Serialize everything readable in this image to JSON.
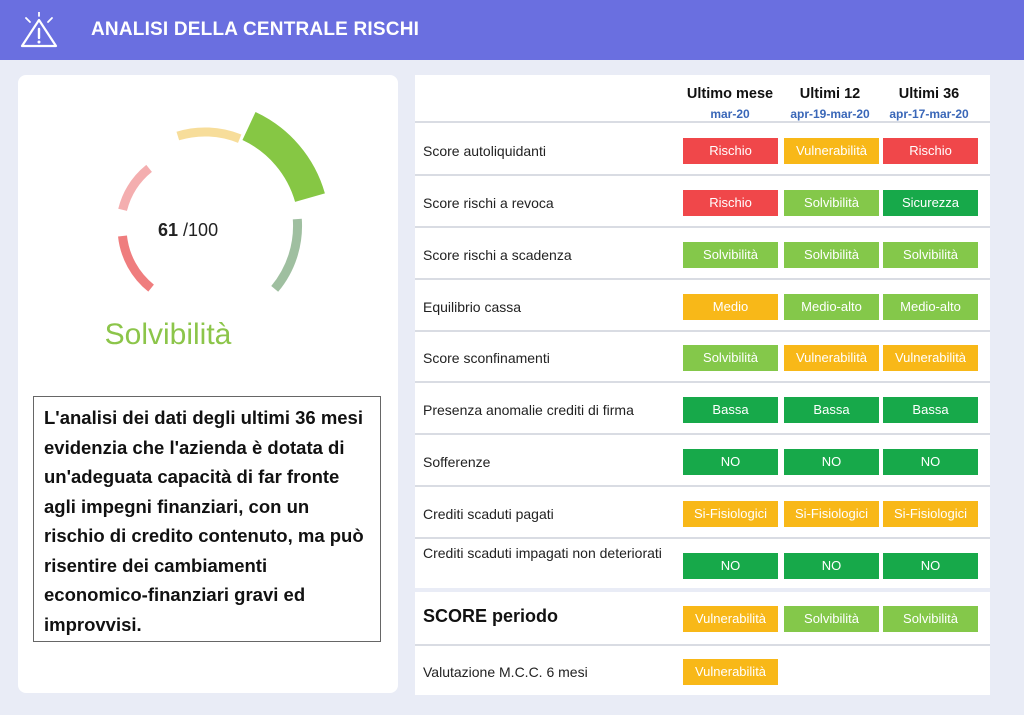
{
  "header": {
    "title": "ANALISI DELLA CENTRALE RISCHI",
    "icon": "warning-triangle-icon",
    "background": "#6a6fe0"
  },
  "gauge": {
    "score": "61",
    "max": "/100",
    "level": "Solvibilità",
    "level_color": "#8cc54a"
  },
  "description": "L'analisi dei dati degli ultimi 36 mesi evidenzia che l'azienda è dotata di un'adeguata capacità di far fronte agli impegni finanziari, con un rischio di credito contenuto, ma può risentire dei cambiamenti economico-finanziari gravi ed improvvisi.",
  "table": {
    "columns": [
      {
        "label": "Ultimo mese",
        "period": "mar-20"
      },
      {
        "label": "Ultimi 12",
        "period": "apr-19-mar-20"
      },
      {
        "label": "Ultimi 36",
        "period": "apr-17-mar-20"
      }
    ],
    "rows": [
      {
        "label": "Score autoliquidanti",
        "cells": [
          {
            "text": "Rischio",
            "color": "red"
          },
          {
            "text": "Vulnerabilità",
            "color": "yellow"
          },
          {
            "text": "Rischio",
            "color": "red"
          }
        ]
      },
      {
        "label": "Score rischi a revoca",
        "cells": [
          {
            "text": "Rischio",
            "color": "red"
          },
          {
            "text": "Solvibilità",
            "color": "lgreen"
          },
          {
            "text": "Sicurezza",
            "color": "dgreen"
          }
        ]
      },
      {
        "label": "Score rischi a scadenza",
        "cells": [
          {
            "text": "Solvibilità",
            "color": "lgreen"
          },
          {
            "text": "Solvibilità",
            "color": "lgreen"
          },
          {
            "text": "Solvibilità",
            "color": "lgreen"
          }
        ]
      },
      {
        "label": "Equilibrio cassa",
        "cells": [
          {
            "text": "Medio",
            "color": "yellow"
          },
          {
            "text": "Medio-alto",
            "color": "lgreen"
          },
          {
            "text": "Medio-alto",
            "color": "lgreen"
          }
        ]
      },
      {
        "label": "Score sconfinamenti",
        "cells": [
          {
            "text": "Solvibilità",
            "color": "lgreen"
          },
          {
            "text": "Vulnerabilità",
            "color": "yellow"
          },
          {
            "text": "Vulnerabilità",
            "color": "yellow"
          }
        ]
      },
      {
        "label": "Presenza anomalie crediti di firma",
        "cells": [
          {
            "text": "Bassa",
            "color": "dgreen"
          },
          {
            "text": "Bassa",
            "color": "dgreen"
          },
          {
            "text": "Bassa",
            "color": "dgreen"
          }
        ]
      },
      {
        "label": "Sofferenze",
        "cells": [
          {
            "text": "NO",
            "color": "dgreen"
          },
          {
            "text": "NO",
            "color": "dgreen"
          },
          {
            "text": "NO",
            "color": "dgreen"
          }
        ]
      },
      {
        "label": "Crediti scaduti pagati",
        "cells": [
          {
            "text": "Si-Fisiologici",
            "color": "yellow"
          },
          {
            "text": "Si-Fisiologici",
            "color": "yellow"
          },
          {
            "text": "Si-Fisiologici",
            "color": "yellow"
          }
        ]
      },
      {
        "label": "Crediti scaduti impagati non deteriorati",
        "cells": [
          {
            "text": "NO",
            "color": "dgreen"
          },
          {
            "text": "NO",
            "color": "dgreen"
          },
          {
            "text": "NO",
            "color": "dgreen"
          }
        ]
      }
    ],
    "score_row": {
      "label": "SCORE periodo",
      "cells": [
        {
          "text": "Vulnerabilità",
          "color": "yellow"
        },
        {
          "text": "Solvibilità",
          "color": "lgreen"
        },
        {
          "text": "Solvibilità",
          "color": "lgreen"
        }
      ]
    },
    "mcc_row": {
      "label": "Valutazione M.C.C. 6 mesi",
      "cells": [
        {
          "text": "Vulnerabilità",
          "color": "yellow"
        }
      ]
    }
  },
  "colors": {
    "red": "#f0474a",
    "yellow": "#f8b818",
    "lgreen": "#84c84a",
    "dgreen": "#17a94a"
  }
}
